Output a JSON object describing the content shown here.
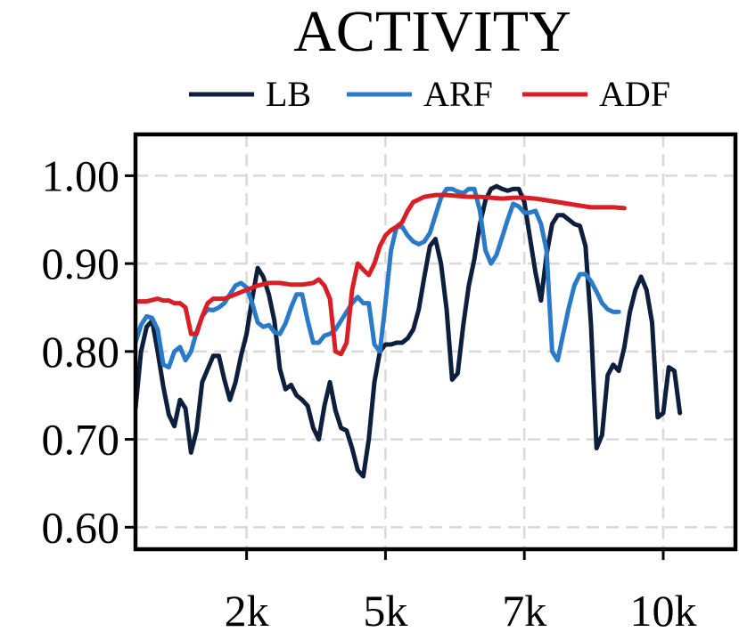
{
  "chart_data": {
    "type": "line",
    "title": "ACTIVITY",
    "xlabel": "",
    "ylabel": "",
    "xlim": [
      0,
      10800
    ],
    "ylim": [
      0.575,
      1.047
    ],
    "grid": true,
    "legend_position": "top",
    "x_ticks": [
      {
        "value": 2000,
        "label": "2k"
      },
      {
        "value": 4500,
        "label": "5k"
      },
      {
        "value": 7000,
        "label": "7k"
      },
      {
        "value": 9500,
        "label": "10k"
      }
    ],
    "y_ticks": [
      {
        "value": 1.0,
        "label": "1.00"
      },
      {
        "value": 0.9,
        "label": "0.90"
      },
      {
        "value": 0.8,
        "label": "0.80"
      },
      {
        "value": 0.7,
        "label": "0.70"
      },
      {
        "value": 0.6,
        "label": "0.60"
      }
    ],
    "series": [
      {
        "name": "LB",
        "color": "#0d1f3c",
        "points": [
          [
            0,
            0.735
          ],
          [
            100,
            0.8
          ],
          [
            200,
            0.828
          ],
          [
            300,
            0.835
          ],
          [
            400,
            0.8
          ],
          [
            500,
            0.76
          ],
          [
            600,
            0.728
          ],
          [
            700,
            0.715
          ],
          [
            800,
            0.745
          ],
          [
            900,
            0.735
          ],
          [
            1000,
            0.685
          ],
          [
            1100,
            0.71
          ],
          [
            1200,
            0.765
          ],
          [
            1300,
            0.78
          ],
          [
            1400,
            0.795
          ],
          [
            1500,
            0.795
          ],
          [
            1600,
            0.768
          ],
          [
            1700,
            0.745
          ],
          [
            1800,
            0.765
          ],
          [
            1900,
            0.795
          ],
          [
            2000,
            0.82
          ],
          [
            2100,
            0.86
          ],
          [
            2200,
            0.895
          ],
          [
            2300,
            0.885
          ],
          [
            2400,
            0.865
          ],
          [
            2500,
            0.835
          ],
          [
            2600,
            0.78
          ],
          [
            2700,
            0.757
          ],
          [
            2800,
            0.762
          ],
          [
            2900,
            0.75
          ],
          [
            3000,
            0.745
          ],
          [
            3100,
            0.738
          ],
          [
            3200,
            0.713
          ],
          [
            3300,
            0.7
          ],
          [
            3400,
            0.738
          ],
          [
            3500,
            0.765
          ],
          [
            3600,
            0.733
          ],
          [
            3700,
            0.713
          ],
          [
            3800,
            0.71
          ],
          [
            3900,
            0.69
          ],
          [
            4000,
            0.665
          ],
          [
            4100,
            0.658
          ],
          [
            4200,
            0.7
          ],
          [
            4300,
            0.765
          ],
          [
            4400,
            0.8
          ],
          [
            4500,
            0.808
          ],
          [
            4600,
            0.808
          ],
          [
            4700,
            0.81
          ],
          [
            4800,
            0.81
          ],
          [
            4900,
            0.815
          ],
          [
            5000,
            0.825
          ],
          [
            5100,
            0.848
          ],
          [
            5200,
            0.885
          ],
          [
            5300,
            0.92
          ],
          [
            5400,
            0.928
          ],
          [
            5500,
            0.9
          ],
          [
            5600,
            0.848
          ],
          [
            5700,
            0.768
          ],
          [
            5800,
            0.775
          ],
          [
            5900,
            0.83
          ],
          [
            6000,
            0.875
          ],
          [
            6100,
            0.905
          ],
          [
            6200,
            0.945
          ],
          [
            6300,
            0.972
          ],
          [
            6400,
            0.985
          ],
          [
            6500,
            0.988
          ],
          [
            6600,
            0.985
          ],
          [
            6700,
            0.983
          ],
          [
            6800,
            0.985
          ],
          [
            6900,
            0.985
          ],
          [
            7000,
            0.97
          ],
          [
            7100,
            0.93
          ],
          [
            7200,
            0.89
          ],
          [
            7300,
            0.858
          ],
          [
            7400,
            0.91
          ],
          [
            7500,
            0.945
          ],
          [
            7600,
            0.955
          ],
          [
            7700,
            0.955
          ],
          [
            7800,
            0.95
          ],
          [
            7900,
            0.945
          ],
          [
            8000,
            0.943
          ],
          [
            8100,
            0.92
          ],
          [
            8200,
            0.83
          ],
          [
            8300,
            0.69
          ],
          [
            8400,
            0.705
          ],
          [
            8500,
            0.773
          ],
          [
            8600,
            0.785
          ],
          [
            8700,
            0.778
          ],
          [
            8800,
            0.805
          ],
          [
            8900,
            0.845
          ],
          [
            9000,
            0.87
          ],
          [
            9100,
            0.885
          ],
          [
            9200,
            0.87
          ],
          [
            9300,
            0.833
          ],
          [
            9400,
            0.725
          ],
          [
            9500,
            0.73
          ],
          [
            9600,
            0.782
          ],
          [
            9700,
            0.778
          ],
          [
            9800,
            0.73
          ]
        ]
      },
      {
        "name": "ARF",
        "color": "#2a7ac8",
        "points": [
          [
            0,
            0.81
          ],
          [
            100,
            0.83
          ],
          [
            200,
            0.84
          ],
          [
            300,
            0.838
          ],
          [
            400,
            0.825
          ],
          [
            500,
            0.785
          ],
          [
            600,
            0.782
          ],
          [
            700,
            0.8
          ],
          [
            800,
            0.805
          ],
          [
            900,
            0.79
          ],
          [
            1000,
            0.8
          ],
          [
            1100,
            0.822
          ],
          [
            1200,
            0.84
          ],
          [
            1300,
            0.848
          ],
          [
            1400,
            0.847
          ],
          [
            1500,
            0.85
          ],
          [
            1600,
            0.855
          ],
          [
            1700,
            0.865
          ],
          [
            1800,
            0.875
          ],
          [
            1900,
            0.878
          ],
          [
            2000,
            0.873
          ],
          [
            2100,
            0.855
          ],
          [
            2200,
            0.833
          ],
          [
            2300,
            0.828
          ],
          [
            2400,
            0.83
          ],
          [
            2500,
            0.822
          ],
          [
            2600,
            0.82
          ],
          [
            2700,
            0.832
          ],
          [
            2800,
            0.85
          ],
          [
            2900,
            0.865
          ],
          [
            3000,
            0.865
          ],
          [
            3100,
            0.835
          ],
          [
            3200,
            0.81
          ],
          [
            3300,
            0.81
          ],
          [
            3400,
            0.818
          ],
          [
            3500,
            0.82
          ],
          [
            3600,
            0.825
          ],
          [
            3700,
            0.835
          ],
          [
            3800,
            0.845
          ],
          [
            3900,
            0.855
          ],
          [
            4000,
            0.862
          ],
          [
            4100,
            0.855
          ],
          [
            4200,
            0.855
          ],
          [
            4300,
            0.808
          ],
          [
            4400,
            0.8
          ],
          [
            4500,
            0.855
          ],
          [
            4600,
            0.915
          ],
          [
            4700,
            0.942
          ],
          [
            4800,
            0.942
          ],
          [
            4900,
            0.932
          ],
          [
            5000,
            0.925
          ],
          [
            5100,
            0.922
          ],
          [
            5200,
            0.925
          ],
          [
            5300,
            0.935
          ],
          [
            5400,
            0.955
          ],
          [
            5500,
            0.975
          ],
          [
            5600,
            0.985
          ],
          [
            5700,
            0.985
          ],
          [
            5800,
            0.982
          ],
          [
            5900,
            0.98
          ],
          [
            6000,
            0.985
          ],
          [
            6100,
            0.985
          ],
          [
            6200,
            0.96
          ],
          [
            6300,
            0.915
          ],
          [
            6400,
            0.9
          ],
          [
            6500,
            0.91
          ],
          [
            6600,
            0.93
          ],
          [
            6700,
            0.95
          ],
          [
            6800,
            0.968
          ],
          [
            6900,
            0.965
          ],
          [
            7000,
            0.958
          ],
          [
            7100,
            0.958
          ],
          [
            7200,
            0.96
          ],
          [
            7300,
            0.945
          ],
          [
            7400,
            0.915
          ],
          [
            7500,
            0.8
          ],
          [
            7600,
            0.79
          ],
          [
            7700,
            0.82
          ],
          [
            7800,
            0.85
          ],
          [
            7900,
            0.875
          ],
          [
            8000,
            0.888
          ],
          [
            8100,
            0.888
          ],
          [
            8200,
            0.88
          ],
          [
            8300,
            0.868
          ],
          [
            8400,
            0.855
          ],
          [
            8500,
            0.848
          ],
          [
            8600,
            0.845
          ],
          [
            8700,
            0.845
          ]
        ]
      },
      {
        "name": "ADF",
        "color": "#d81f26",
        "points": [
          [
            0,
            0.857
          ],
          [
            200,
            0.857
          ],
          [
            400,
            0.86
          ],
          [
            500,
            0.858
          ],
          [
            600,
            0.858
          ],
          [
            700,
            0.855
          ],
          [
            800,
            0.855
          ],
          [
            900,
            0.85
          ],
          [
            1000,
            0.82
          ],
          [
            1100,
            0.82
          ],
          [
            1200,
            0.84
          ],
          [
            1300,
            0.855
          ],
          [
            1400,
            0.86
          ],
          [
            1600,
            0.86
          ],
          [
            1800,
            0.865
          ],
          [
            2000,
            0.87
          ],
          [
            2200,
            0.875
          ],
          [
            2400,
            0.878
          ],
          [
            2600,
            0.878
          ],
          [
            2800,
            0.876
          ],
          [
            3000,
            0.876
          ],
          [
            3200,
            0.878
          ],
          [
            3300,
            0.882
          ],
          [
            3400,
            0.875
          ],
          [
            3500,
            0.86
          ],
          [
            3600,
            0.8
          ],
          [
            3700,
            0.797
          ],
          [
            3800,
            0.81
          ],
          [
            3900,
            0.87
          ],
          [
            4000,
            0.9
          ],
          [
            4100,
            0.893
          ],
          [
            4200,
            0.887
          ],
          [
            4300,
            0.9
          ],
          [
            4400,
            0.92
          ],
          [
            4500,
            0.932
          ],
          [
            4600,
            0.938
          ],
          [
            4700,
            0.942
          ],
          [
            4800,
            0.947
          ],
          [
            4900,
            0.96
          ],
          [
            5000,
            0.97
          ],
          [
            5200,
            0.976
          ],
          [
            5400,
            0.978
          ],
          [
            5600,
            0.978
          ],
          [
            5800,
            0.977
          ],
          [
            6000,
            0.976
          ],
          [
            6200,
            0.976
          ],
          [
            6400,
            0.975
          ],
          [
            6600,
            0.974
          ],
          [
            6800,
            0.975
          ],
          [
            7000,
            0.975
          ],
          [
            7200,
            0.974
          ],
          [
            7400,
            0.972
          ],
          [
            7600,
            0.97
          ],
          [
            7800,
            0.968
          ],
          [
            8000,
            0.966
          ],
          [
            8200,
            0.964
          ],
          [
            8400,
            0.964
          ],
          [
            8600,
            0.964
          ],
          [
            8800,
            0.963
          ]
        ]
      }
    ]
  }
}
